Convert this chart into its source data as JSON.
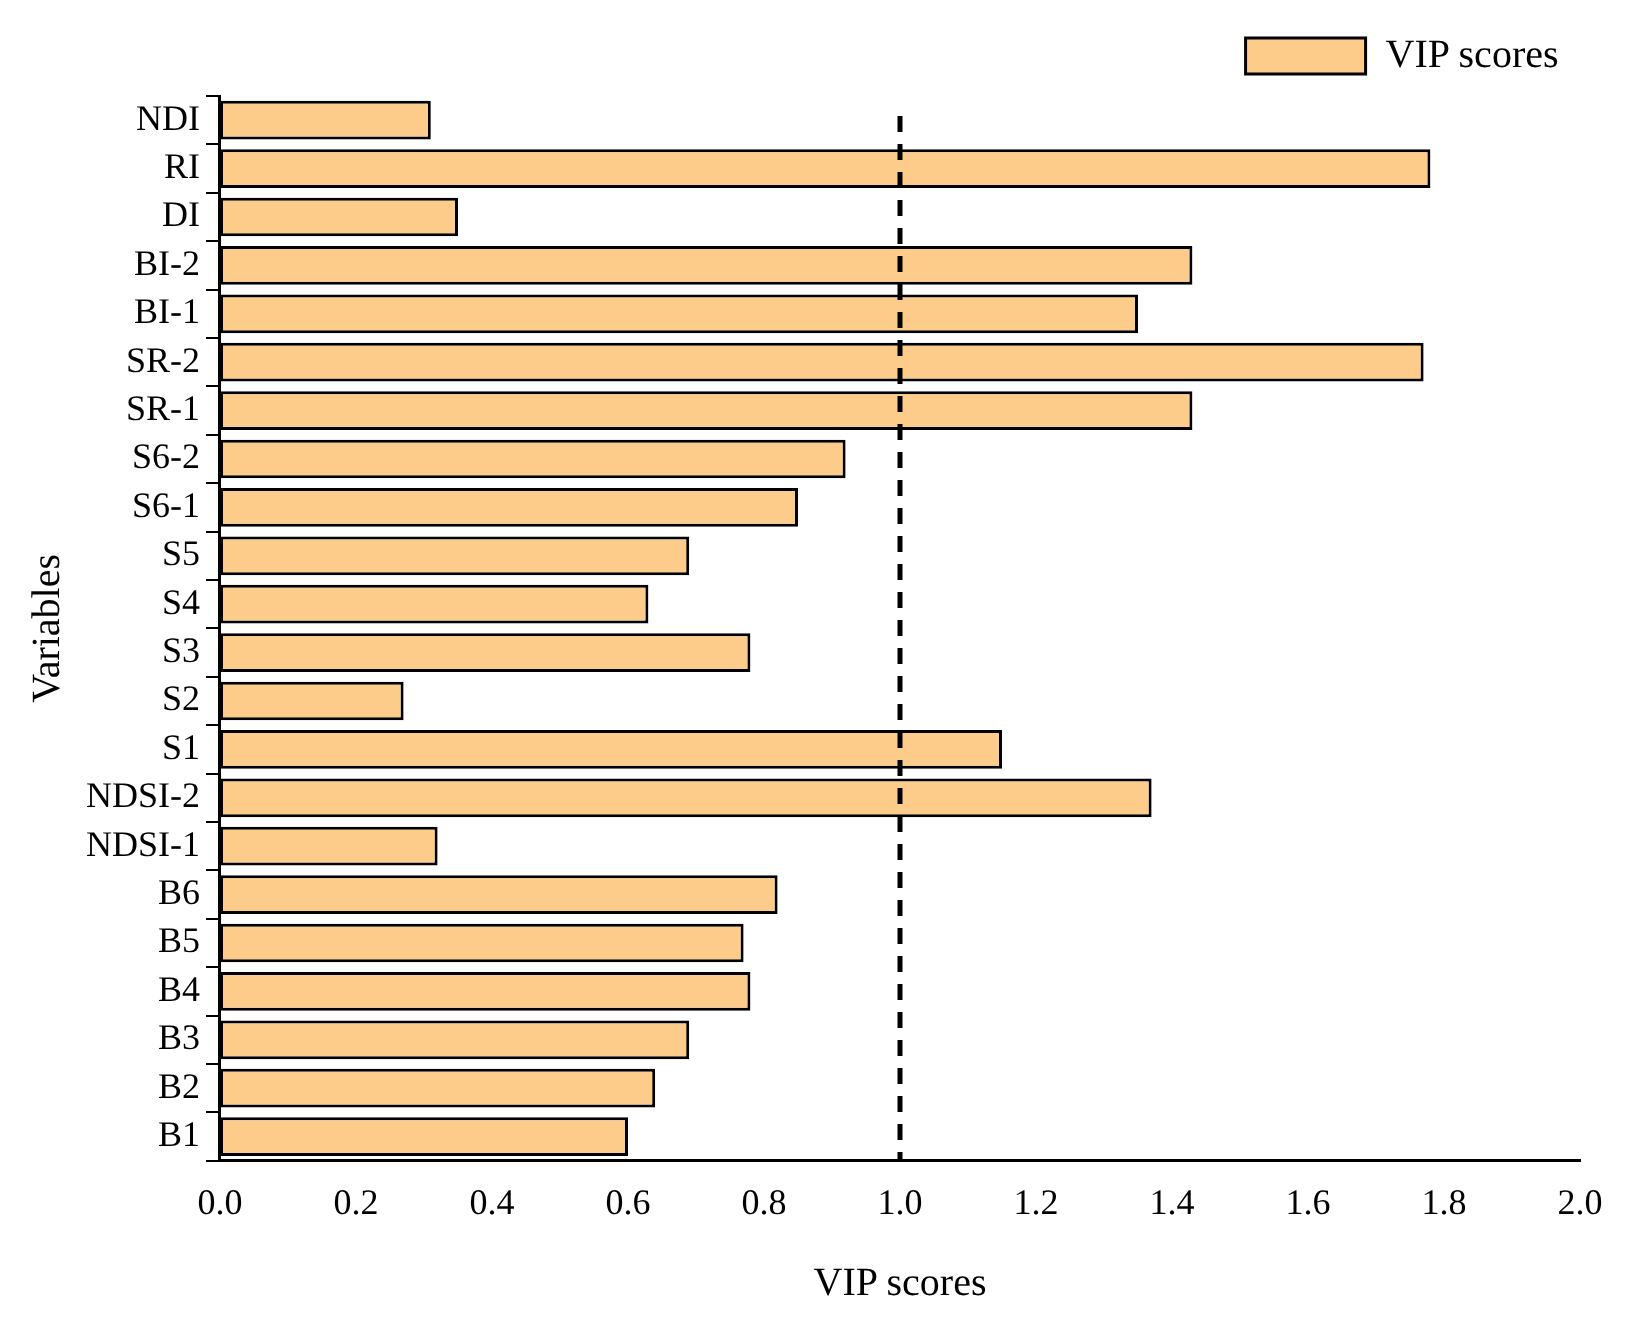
{
  "chart_data": {
    "type": "bar",
    "orientation": "horizontal",
    "xlabel": "VIP scores",
    "ylabel": "Variables",
    "categories": [
      "NDI",
      "RI",
      "DI",
      "BI-2",
      "BI-1",
      "SR-2",
      "SR-1",
      "S6-2",
      "S6-1",
      "S5",
      "S4",
      "S3",
      "S2",
      "S1",
      "NDSI-2",
      "NDSI-1",
      "B6",
      "B5",
      "B4",
      "B3",
      "B2",
      "B1"
    ],
    "series": [
      {
        "name": "VIP scores",
        "color": "#fdcc8a",
        "values": [
          0.31,
          1.78,
          0.35,
          1.43,
          1.35,
          1.77,
          1.43,
          0.92,
          0.85,
          0.69,
          0.63,
          0.78,
          0.27,
          1.15,
          1.37,
          0.32,
          0.82,
          0.77,
          0.78,
          0.69,
          0.64,
          0.6
        ]
      }
    ],
    "xlim": [
      0,
      2
    ],
    "xticks": [
      {
        "value": 0,
        "label": "0.0"
      },
      {
        "value": 0.2,
        "label": "0.2"
      },
      {
        "value": 0.4,
        "label": "0.4"
      },
      {
        "value": 0.6,
        "label": "0.6"
      },
      {
        "value": 0.8,
        "label": "0.8"
      },
      {
        "value": 1,
        "label": "1.0"
      },
      {
        "value": 1.2,
        "label": "1.2"
      },
      {
        "value": 1.4,
        "label": "1.4"
      },
      {
        "value": 1.6,
        "label": "1.6"
      },
      {
        "value": 1.8,
        "label": "1.8"
      },
      {
        "value": 2,
        "label": "2.0"
      }
    ],
    "ref_lines": [
      {
        "axis": "x",
        "value": 1,
        "color": "#000000",
        "line_style": "dashed"
      }
    ],
    "grid": false,
    "legend": "top right"
  }
}
